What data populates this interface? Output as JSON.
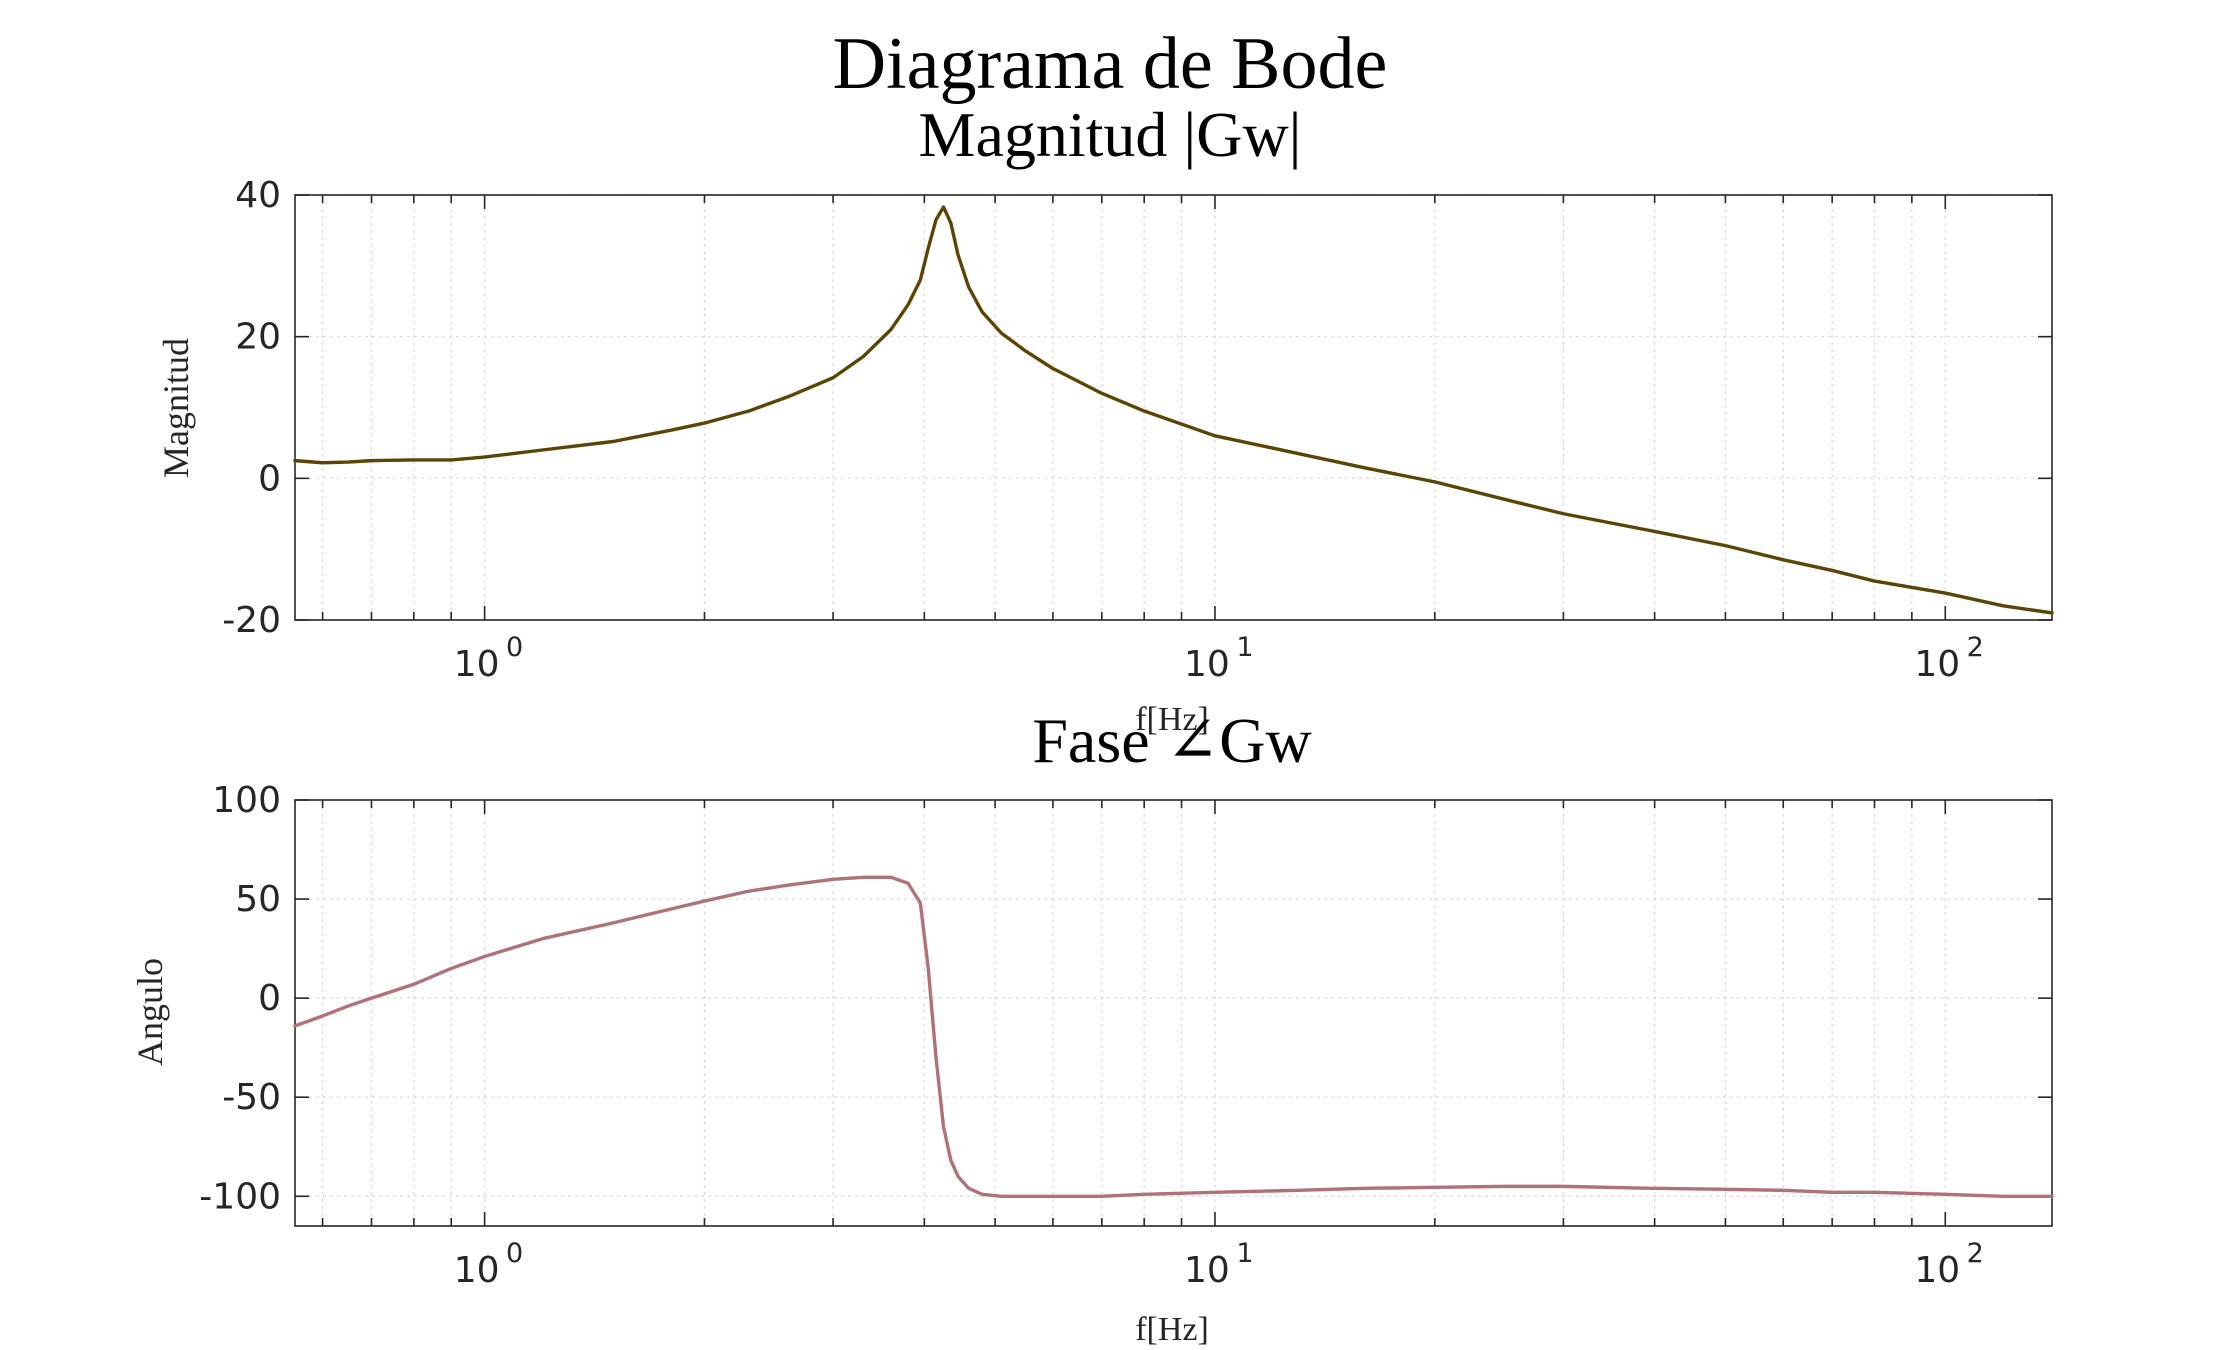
{
  "figure": {
    "title": "Diagrama de Bode"
  },
  "chart_data": [
    {
      "type": "line",
      "title": "Magnitud |Gw|",
      "xlabel": "f[Hz]",
      "ylabel": "Magnitud",
      "xscale": "log",
      "xlim": [
        0.55,
        140
      ],
      "ylim": [
        -20,
        40
      ],
      "grid": true,
      "x_tick_labels": [
        "10^0",
        "10^1",
        "10^2"
      ],
      "y_tick_labels": [
        "40",
        "20",
        "0",
        "-20"
      ],
      "series": [
        {
          "color": "#5c4504",
          "x": [
            0.55,
            0.6,
            0.65,
            0.7,
            0.8,
            0.9,
            1.0,
            1.2,
            1.5,
            1.8,
            2.0,
            2.3,
            2.6,
            3.0,
            3.3,
            3.6,
            3.8,
            3.95,
            4.05,
            4.15,
            4.25,
            4.35,
            4.45,
            4.6,
            4.8,
            5.1,
            5.5,
            6.0,
            7.0,
            8.0,
            10.0,
            13.0,
            16.0,
            20.0,
            25.0,
            30.0,
            40.0,
            50.0,
            60.0,
            70.0,
            80.0,
            100.0,
            120.0,
            140.0
          ],
          "y": [
            2.5,
            2.2,
            2.3,
            2.5,
            2.6,
            2.6,
            3.0,
            4.0,
            5.2,
            6.8,
            7.8,
            9.5,
            11.5,
            14.2,
            17.2,
            21.0,
            24.5,
            28.0,
            32.5,
            36.5,
            38.3,
            36.0,
            31.5,
            27.0,
            23.5,
            20.5,
            18.0,
            15.5,
            12.0,
            9.5,
            6.0,
            3.5,
            1.5,
            -0.5,
            -3.0,
            -5.0,
            -7.5,
            -9.5,
            -11.5,
            -13.0,
            -14.5,
            -16.2,
            -18.0,
            -19.0
          ]
        }
      ]
    },
    {
      "type": "line",
      "title": "Fase ∠Gw",
      "xlabel": "f[Hz]",
      "ylabel": "Angulo",
      "xscale": "log",
      "xlim": [
        0.55,
        140
      ],
      "ylim": [
        -115,
        100
      ],
      "grid": true,
      "x_tick_labels": [
        "10^0",
        "10^1",
        "10^2"
      ],
      "y_tick_labels": [
        "100",
        "50",
        "0",
        "-50",
        "-100"
      ],
      "series": [
        {
          "color": "#b07279",
          "x": [
            0.55,
            0.6,
            0.65,
            0.7,
            0.8,
            0.9,
            1.0,
            1.2,
            1.5,
            1.8,
            2.0,
            2.3,
            2.6,
            3.0,
            3.3,
            3.6,
            3.8,
            3.95,
            4.05,
            4.15,
            4.25,
            4.35,
            4.45,
            4.6,
            4.8,
            5.1,
            5.5,
            6.0,
            7.0,
            8.0,
            10.0,
            13.0,
            16.0,
            20.0,
            25.0,
            30.0,
            40.0,
            50.0,
            60.0,
            70.0,
            80.0,
            100.0,
            120.0,
            140.0
          ],
          "y": [
            -14,
            -9,
            -4,
            0,
            7,
            15,
            21,
            30,
            38,
            45,
            49,
            54,
            57,
            60,
            61,
            61,
            58,
            48,
            15,
            -30,
            -65,
            -82,
            -90,
            -96,
            -99,
            -100,
            -100,
            -100,
            -100,
            -99,
            -98,
            -97,
            -96,
            -95.5,
            -95,
            -95,
            -96,
            -96.5,
            -97,
            -98,
            -98,
            -99,
            -100,
            -100
          ]
        }
      ]
    }
  ]
}
